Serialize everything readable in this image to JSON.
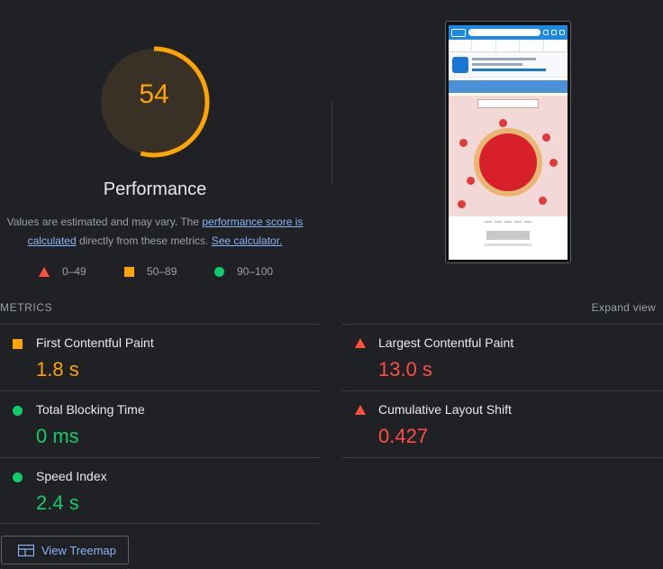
{
  "gauge": {
    "score": "54",
    "score_fraction": 0.54,
    "label": "Performance",
    "color": "#ffa400"
  },
  "description": {
    "text_1": "Values are estimated and may vary. The ",
    "link_1": "performance score is calculated",
    "text_2": " directly from these metrics. ",
    "link_2": "See calculator."
  },
  "legend": [
    {
      "icon": "red-triangle-icon",
      "range": "0–49"
    },
    {
      "icon": "orange-square-icon",
      "range": "50–89"
    },
    {
      "icon": "green-circle-icon",
      "range": "90–100"
    }
  ],
  "metrics": {
    "title": "METRICS",
    "expand_label": "Expand view",
    "items": [
      {
        "name": "First Contentful Paint",
        "value": "1.8 s",
        "status": "average",
        "icon": "orange-square-icon"
      },
      {
        "name": "Largest Contentful Paint",
        "value": "13.0 s",
        "status": "fail",
        "icon": "red-triangle-icon"
      },
      {
        "name": "Total Blocking Time",
        "value": "0 ms",
        "status": "pass",
        "icon": "green-circle-icon"
      },
      {
        "name": "Cumulative Layout Shift",
        "value": "0.427",
        "status": "fail",
        "icon": "red-triangle-icon"
      },
      {
        "name": "Speed Index",
        "value": "2.4 s",
        "status": "pass",
        "icon": "green-circle-icon"
      }
    ]
  },
  "treemap": {
    "label": "View Treemap",
    "icon": "treemap-icon"
  },
  "colors": {
    "background": "#202124",
    "fail": "#ff4e42",
    "average": "#ffa400",
    "pass": "#0cce6b",
    "link": "#8ab4f8"
  }
}
